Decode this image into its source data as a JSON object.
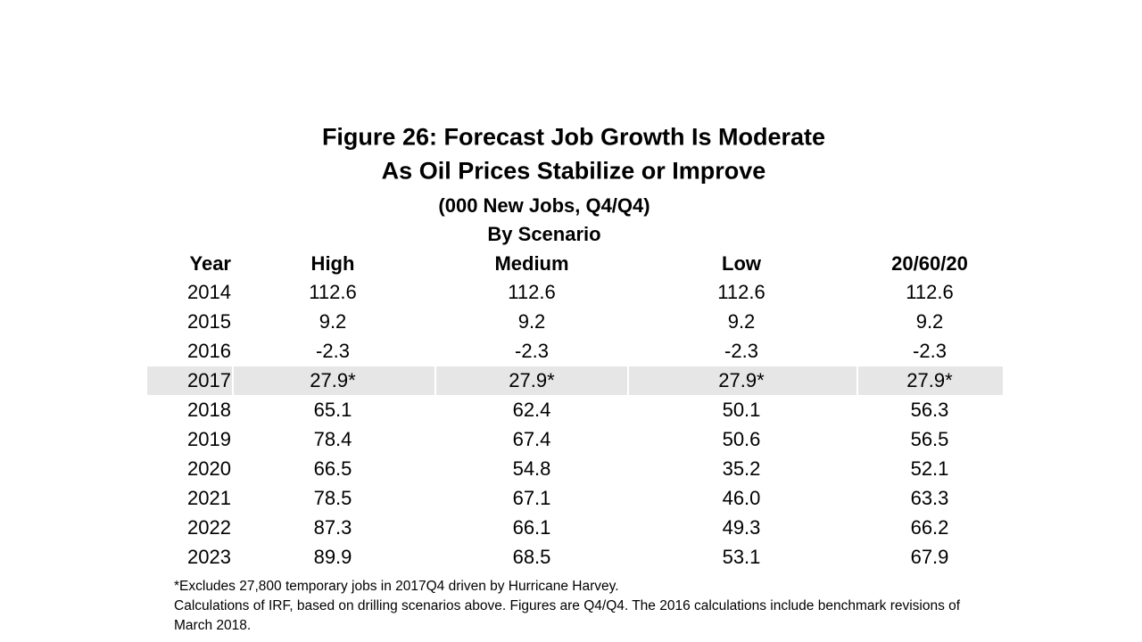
{
  "header": {
    "title_lines": [
      "Figure 26: Forecast Job Growth Is Moderate",
      "As Oil Prices Stabilize or Improve"
    ],
    "subtitle": "(000 New Jobs, Q4/Q4)",
    "group_label": "By Scenario"
  },
  "table": {
    "columns": [
      "Year",
      "High",
      "Medium",
      "Low",
      "20/60/20"
    ],
    "rows": [
      [
        "2014",
        "112.6",
        "112.6",
        "112.6",
        "112.6"
      ],
      [
        "2015",
        "9.2",
        "9.2",
        "9.2",
        "9.2"
      ],
      [
        "2016",
        "-2.3",
        "-2.3",
        "-2.3",
        "-2.3"
      ],
      [
        "2017",
        "27.9*",
        "27.9*",
        "27.9*",
        "27.9*"
      ],
      [
        "2018",
        "65.1",
        "62.4",
        "50.1",
        "56.3"
      ],
      [
        "2019",
        "78.4",
        "67.4",
        "50.6",
        "56.5"
      ],
      [
        "2020",
        "66.5",
        "54.8",
        "35.2",
        "52.1"
      ],
      [
        "2021",
        "78.5",
        "67.1",
        "46.0",
        "63.3"
      ],
      [
        "2022",
        "87.3",
        "66.1",
        "49.3",
        "66.2"
      ],
      [
        "2023",
        "89.9",
        "68.5",
        "53.1",
        "67.9"
      ]
    ]
  },
  "notes": [
    "*Excludes 27,800 temporary jobs in 2017Q4 driven by Hurricane Harvey.",
    "Calculations of IRF, based on drilling scenarios above.  Figures are Q4/Q4. The 2016 calculations include benchmark revisions of March 2018."
  ]
}
